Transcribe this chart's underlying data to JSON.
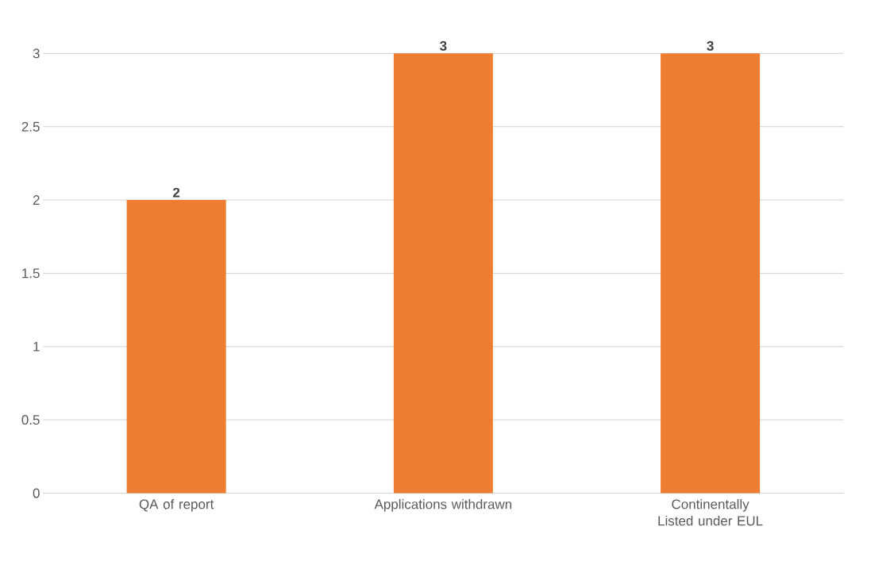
{
  "chart_data": {
    "type": "bar",
    "categories": [
      "QA of report",
      "Applications withdrawn",
      "Continentally Listed under EUL"
    ],
    "values": [
      2,
      3,
      3
    ],
    "color": "#ed7d31",
    "ylim": [
      0,
      3
    ],
    "yticks": [
      0,
      0.5,
      1,
      1.5,
      2,
      2.5,
      3
    ],
    "grid": "y",
    "data_labels": true
  }
}
